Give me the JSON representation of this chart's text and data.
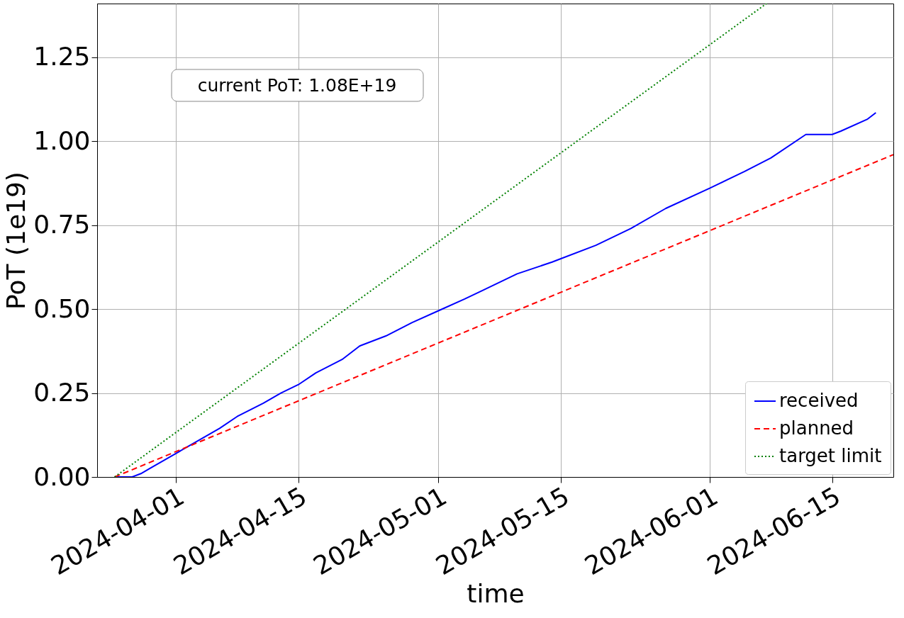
{
  "chart_data": {
    "type": "line",
    "xlabel": "time",
    "ylabel": "PoT (1e19)",
    "annotations": [
      "current PoT:  1.08E+19"
    ],
    "xlim": [
      "2024-03-23",
      "2024-06-22"
    ],
    "xticks": [
      {
        "value": "2024-04-01",
        "label": "2024-04-01"
      },
      {
        "value": "2024-04-15",
        "label": "2024-04-15"
      },
      {
        "value": "2024-05-01",
        "label": "2024-05-01"
      },
      {
        "value": "2024-05-15",
        "label": "2024-05-15"
      },
      {
        "value": "2024-06-01",
        "label": "2024-06-01"
      },
      {
        "value": "2024-06-15",
        "label": "2024-06-15"
      }
    ],
    "ylim": [
      0,
      1.41
    ],
    "yticks": [
      {
        "value": 0,
        "label": "0.00"
      },
      {
        "value": 0.25,
        "label": "0.25"
      },
      {
        "value": 0.5,
        "label": "0.50"
      },
      {
        "value": 0.75,
        "label": "0.75"
      },
      {
        "value": 1,
        "label": "1.00"
      },
      {
        "value": 1.25,
        "label": "1.25"
      }
    ],
    "grid": true,
    "legend": "bottom right",
    "series": [
      {
        "name": "received",
        "color": "#0000ff",
        "line_style": "solid",
        "x": [
          "2024-03-25",
          "2024-03-27",
          "2024-03-28",
          "2024-03-29",
          "2024-04-01",
          "2024-04-03",
          "2024-04-06",
          "2024-04-08",
          "2024-04-11",
          "2024-04-13",
          "2024-04-15",
          "2024-04-17",
          "2024-04-20",
          "2024-04-22",
          "2024-04-25",
          "2024-04-28",
          "2024-05-01",
          "2024-05-04",
          "2024-05-06",
          "2024-05-10",
          "2024-05-14",
          "2024-05-15",
          "2024-05-19",
          "2024-05-23",
          "2024-05-27",
          "2024-06-01",
          "2024-06-05",
          "2024-06-08",
          "2024-06-12",
          "2024-06-15",
          "2024-06-16",
          "2024-06-19",
          "2024-06-20"
        ],
        "values": [
          0,
          0,
          0.01,
          0.025,
          0.07,
          0.1,
          0.145,
          0.18,
          0.22,
          0.25,
          0.275,
          0.31,
          0.35,
          0.39,
          0.42,
          0.46,
          0.495,
          0.53,
          0.555,
          0.605,
          0.64,
          0.65,
          0.69,
          0.74,
          0.8,
          0.86,
          0.91,
          0.95,
          1.02,
          1.02,
          1.03,
          1.065,
          1.085
        ]
      },
      {
        "name": "planned",
        "color": "#ff0000",
        "line_style": "dashed",
        "x": [
          "2024-03-25",
          "2024-06-22"
        ],
        "values": [
          0,
          0.96
        ]
      },
      {
        "name": "target limit",
        "color": "#008000",
        "line_style": "dotted",
        "x": [
          "2024-03-25",
          "2024-06-07T12:00"
        ],
        "values": [
          0,
          1.41
        ]
      }
    ]
  }
}
